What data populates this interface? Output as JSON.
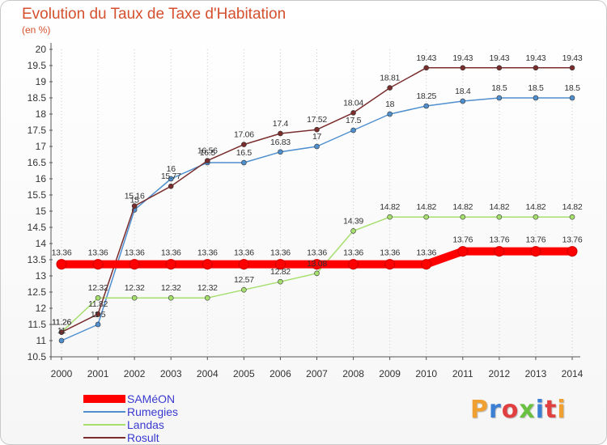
{
  "chart_data": {
    "type": "line",
    "title": "Evolution du Taux de Taxe d'Habitation",
    "subtitle": "(en %)",
    "x": [
      "2000",
      "2001",
      "2002",
      "2003",
      "2004",
      "2005",
      "2006",
      "2007",
      "2008",
      "2009",
      "2010",
      "2011",
      "2012",
      "2013",
      "2014"
    ],
    "ylim": [
      10.5,
      20
    ],
    "yticks": [
      "10.5",
      "11",
      "11.5",
      "12",
      "12.5",
      "13",
      "13.5",
      "14",
      "14.5",
      "15",
      "15.5",
      "16",
      "16.5",
      "17",
      "17.5",
      "18",
      "18.5",
      "19",
      "19.5",
      "20"
    ],
    "grid": "vertical dotted",
    "legend_placement": "bottom-left",
    "series": [
      {
        "name": "SAMéON",
        "color": "#ff0000",
        "width": 10,
        "values": [
          13.36,
          13.36,
          13.36,
          13.36,
          13.36,
          13.36,
          13.36,
          13.36,
          13.36,
          13.36,
          13.36,
          13.76,
          13.76,
          13.76,
          13.76
        ],
        "labels": [
          "13.36",
          "13.36",
          "13.36",
          "13.36",
          "13.36",
          "13.36",
          "13.36",
          "13.36",
          "13.36",
          "13.36",
          "13.36",
          "13.76",
          "13.76",
          "13.76",
          "13.76"
        ]
      },
      {
        "name": "Rumegies",
        "color": "#4f8fce",
        "width": 1.5,
        "values": [
          11,
          11.5,
          15.04,
          16,
          16.5,
          16.5,
          16.83,
          17,
          17.5,
          18,
          18.25,
          18.4,
          18.5,
          18.5,
          18.5
        ],
        "labels": [
          "11",
          "11.5",
          "15",
          "16",
          "16.5",
          "16.5",
          "16.83",
          "17",
          "17.5",
          "18",
          "18.25",
          "18.4",
          "18.5",
          "18.5",
          "18.5"
        ]
      },
      {
        "name": "Landas",
        "color": "#a6df6e",
        "width": 1.5,
        "values": [
          11.26,
          12.32,
          12.32,
          12.32,
          12.32,
          12.57,
          12.82,
          13.08,
          14.39,
          14.82,
          14.82,
          14.82,
          14.82,
          14.82,
          14.82
        ],
        "labels": [
          "11.26",
          "12.32",
          "12.32",
          "12.32",
          "12.32",
          "12.57",
          "12.82",
          "13.08",
          "14.39",
          "14.82",
          "14.82",
          "14.82",
          "14.82",
          "14.82",
          "14.82"
        ]
      },
      {
        "name": "Rosult",
        "color": "#7a2d2d",
        "width": 1.5,
        "values": [
          11.26,
          11.82,
          15.16,
          15.77,
          16.56,
          17.06,
          17.4,
          17.52,
          18.04,
          18.81,
          19.43,
          19.43,
          19.43,
          19.43,
          19.43
        ],
        "labels": [
          "11.26",
          "11.82",
          "15.16",
          "15.77",
          "16.56",
          "17.06",
          "17.4",
          "17.52",
          "18.04",
          "18.81",
          "19.43",
          "19.43",
          "19.43",
          "19.43",
          "19.43"
        ]
      }
    ]
  },
  "logo": {
    "text": "Proxiti",
    "colors": [
      "#f0a030",
      "#3b7fd4",
      "#e04040",
      "#6ac040",
      "#3b7fd4",
      "#e04040",
      "#f0a030"
    ]
  }
}
